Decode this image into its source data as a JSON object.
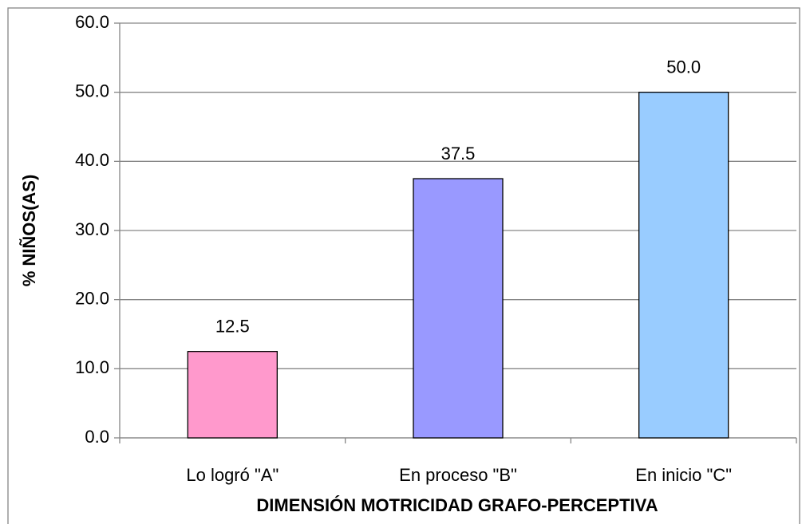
{
  "chart_data": {
    "type": "bar",
    "categories": [
      "Lo logró \"A\"",
      "En proceso \"B\"",
      "En inicio \"C\""
    ],
    "values": [
      12.5,
      37.5,
      50
    ],
    "value_labels": [
      "12.5",
      "37.5",
      "50.0"
    ],
    "colors": [
      "#ff99cc",
      "#9999ff",
      "#99ccff"
    ],
    "y_label": "% NIÑOS(AS)",
    "x_label": "DIMENSIÓN MOTRICIDAD GRAFO-PERCEPTIVA",
    "ylim": [
      0,
      60
    ],
    "yticks": [
      {
        "value": 0,
        "label": "0.0"
      },
      {
        "value": 10,
        "label": "10.0"
      },
      {
        "value": 20,
        "label": "20.0"
      },
      {
        "value": 30,
        "label": "30.0"
      },
      {
        "value": 40,
        "label": "40.0"
      },
      {
        "value": 50,
        "label": "50.0"
      },
      {
        "value": 60,
        "label": "60.0"
      }
    ],
    "grid": true
  }
}
